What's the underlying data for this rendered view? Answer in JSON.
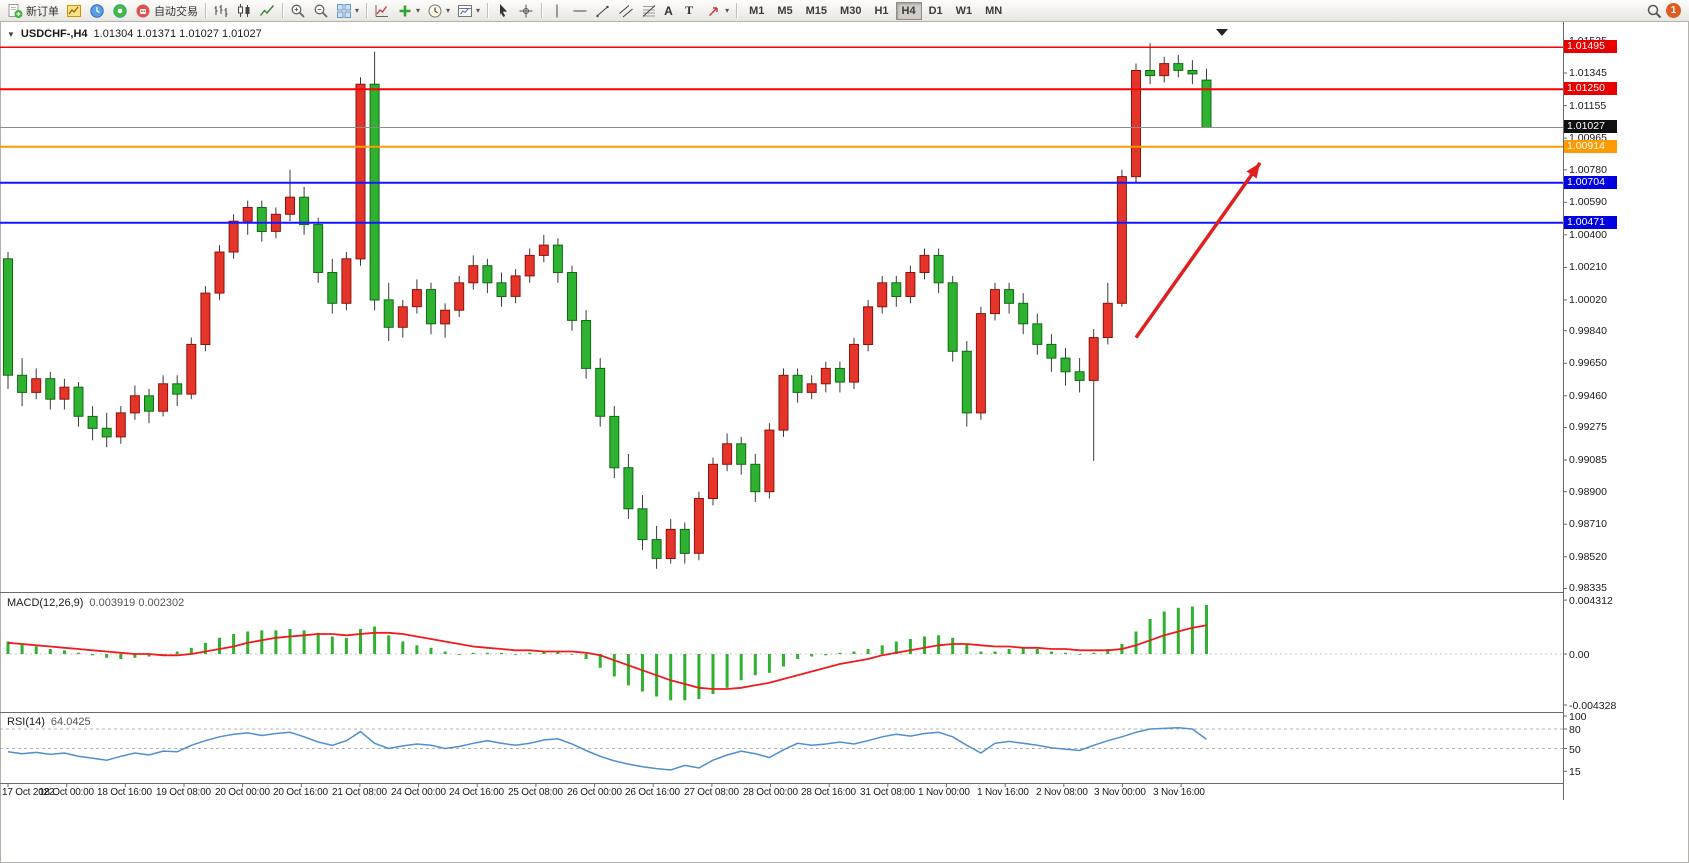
{
  "window": {
    "chart_title_marker": "▼",
    "symbol_period": "USDCHF-,H4",
    "ohlc_text": "1.01304 1.01371 1.01027 1.01027"
  },
  "toolbar": {
    "new_order_label": "新订单",
    "autotrading_label": "自动交易",
    "text_tool_label": "A",
    "label_tool_label": "T",
    "timeframes": [
      "M1",
      "M5",
      "M15",
      "M30",
      "H1",
      "H4",
      "D1",
      "W1",
      "MN"
    ],
    "active_timeframe": "H4",
    "notification_count": "1"
  },
  "chart_data": {
    "type": "candlestick",
    "symbol": "USDCHF-",
    "period": "H4",
    "ohlc": {
      "open": "1.01304",
      "high": "1.01371",
      "low": "1.01027",
      "close": "1.01027"
    },
    "colors": {
      "up": "#e5352b",
      "up_border": "#8f130b",
      "down": "#2fb132",
      "down_border": "#0d6e10",
      "wick": "#3a3a3a",
      "macd_hist": "#2fb132",
      "macd_signal": "#ee1c1c",
      "rsi": "#4f8fd0",
      "current_line": "#8c8c8c",
      "arrow": "#e02020"
    },
    "price_ticks": [
      "1.01535",
      "1.01345",
      "1.01155",
      "1.00965",
      "1.00780",
      "1.00590",
      "1.00400",
      "1.00210",
      "1.00020",
      "0.99840",
      "0.99650",
      "0.99460",
      "0.99275",
      "0.99085",
      "0.98900",
      "0.98710",
      "0.98520",
      "0.98335"
    ],
    "time_labels": [
      "17 Oct 2022",
      "18 Oct 00:00",
      "18 Oct 16:00",
      "19 Oct 08:00",
      "20 Oct 00:00",
      "20 Oct 16:00",
      "21 Oct 08:00",
      "24 Oct 00:00",
      "24 Oct 16:00",
      "25 Oct 08:00",
      "26 Oct 00:00",
      "26 Oct 16:00",
      "27 Oct 08:00",
      "28 Oct 00:00",
      "28 Oct 16:00",
      "31 Oct 08:00",
      "1 Nov 00:00",
      "1 Nov 16:00",
      "2 Nov 08:00",
      "3 Nov 00:00",
      "3 Nov 16:00"
    ],
    "hlines": [
      {
        "price": 1.01495,
        "color": "#ff0000",
        "width": 1.5,
        "label": "1.01495",
        "label_bg": "#e80000"
      },
      {
        "price": 1.0125,
        "color": "#ff0000",
        "width": 2,
        "label": "1.01250",
        "label_bg": "#e80000"
      },
      {
        "price": 1.00914,
        "color": "#ff9a00",
        "width": 2,
        "label": "1.00914",
        "label_bg": "#ff9a00"
      },
      {
        "price": 1.00704,
        "color": "#1414ff",
        "width": 2,
        "label": "1.00704",
        "label_bg": "#0000e0"
      },
      {
        "price": 1.00471,
        "color": "#1414ff",
        "width": 2,
        "label": "1.00471",
        "label_bg": "#0000e0"
      }
    ],
    "current_price": {
      "value": 1.01027,
      "label": "1.01027",
      "label_bg": "#101010"
    },
    "trend_arrow": {
      "from": {
        "bar": 80,
        "price": 0.998
      },
      "to": {
        "bar": 88.8,
        "price": 1.0082
      }
    },
    "candles": [
      [
        1.0026,
        1.003,
        0.995,
        0.9958
      ],
      [
        0.9958,
        0.9968,
        0.994,
        0.9948
      ],
      [
        0.9948,
        0.9962,
        0.9944,
        0.9956
      ],
      [
        0.9956,
        0.996,
        0.9938,
        0.9944
      ],
      [
        0.9944,
        0.9956,
        0.9938,
        0.9951
      ],
      [
        0.9951,
        0.9954,
        0.9928,
        0.9934
      ],
      [
        0.9934,
        0.994,
        0.992,
        0.9927
      ],
      [
        0.9927,
        0.9936,
        0.9916,
        0.9922
      ],
      [
        0.9922,
        0.994,
        0.9918,
        0.9936
      ],
      [
        0.9936,
        0.9952,
        0.9932,
        0.9946
      ],
      [
        0.9946,
        0.995,
        0.993,
        0.9937
      ],
      [
        0.9937,
        0.9958,
        0.9934,
        0.9953
      ],
      [
        0.9953,
        0.9958,
        0.994,
        0.9947
      ],
      [
        0.9947,
        0.998,
        0.9944,
        0.9976
      ],
      [
        0.9976,
        1.001,
        0.9972,
        1.0006
      ],
      [
        1.0006,
        1.0034,
        1.0002,
        1.003
      ],
      [
        1.003,
        1.0052,
        1.0026,
        1.0048
      ],
      [
        1.0048,
        1.006,
        1.004,
        1.0056
      ],
      [
        1.0056,
        1.006,
        1.0036,
        1.0042
      ],
      [
        1.0042,
        1.0056,
        1.0038,
        1.0052
      ],
      [
        1.0052,
        1.0078,
        1.0048,
        1.0062
      ],
      [
        1.0062,
        1.0068,
        1.004,
        1.0046
      ],
      [
        1.0046,
        1.005,
        1.0012,
        1.0018
      ],
      [
        1.0018,
        1.0026,
        0.9994,
        1.0
      ],
      [
        1.0,
        1.003,
        0.9996,
        1.0026
      ],
      [
        1.0026,
        1.0132,
        1.0022,
        1.0128
      ],
      [
        1.0128,
        1.0147,
        0.9996,
        1.0002
      ],
      [
        1.0002,
        1.0012,
        0.9978,
        0.9986
      ],
      [
        0.9986,
        1.0002,
        0.998,
        0.9998
      ],
      [
        0.9998,
        1.0014,
        0.9994,
        1.0008
      ],
      [
        1.0008,
        1.0012,
        0.9982,
        0.9988
      ],
      [
        0.9988,
        1.0,
        0.998,
        0.9996
      ],
      [
        0.9996,
        1.0016,
        0.9992,
        1.0012
      ],
      [
        1.0012,
        1.0028,
        1.0008,
        1.0022
      ],
      [
        1.0022,
        1.0026,
        1.0006,
        1.0012
      ],
      [
        1.0012,
        1.0018,
        0.9998,
        1.0004
      ],
      [
        1.0004,
        1.002,
        1.0,
        1.0016
      ],
      [
        1.0016,
        1.0032,
        1.0012,
        1.0028
      ],
      [
        1.0028,
        1.004,
        1.0024,
        1.0034
      ],
      [
        1.0034,
        1.0038,
        1.0012,
        1.0018
      ],
      [
        1.0018,
        1.0022,
        0.9984,
        0.999
      ],
      [
        0.999,
        0.9996,
        0.9956,
        0.9962
      ],
      [
        0.9962,
        0.9968,
        0.9928,
        0.9934
      ],
      [
        0.9934,
        0.994,
        0.9898,
        0.9904
      ],
      [
        0.9904,
        0.9912,
        0.9874,
        0.988
      ],
      [
        0.988,
        0.9888,
        0.9856,
        0.9862
      ],
      [
        0.9862,
        0.987,
        0.9845,
        0.9851
      ],
      [
        0.9851,
        0.9874,
        0.9848,
        0.9868
      ],
      [
        0.9868,
        0.9872,
        0.9848,
        0.9854
      ],
      [
        0.9854,
        0.989,
        0.985,
        0.9886
      ],
      [
        0.9886,
        0.991,
        0.9882,
        0.9906
      ],
      [
        0.9906,
        0.9924,
        0.9902,
        0.9918
      ],
      [
        0.9918,
        0.9922,
        0.99,
        0.9906
      ],
      [
        0.9906,
        0.9912,
        0.9884,
        0.989
      ],
      [
        0.989,
        0.993,
        0.9886,
        0.9926
      ],
      [
        0.9926,
        0.9962,
        0.9922,
        0.9958
      ],
      [
        0.9958,
        0.9962,
        0.9942,
        0.9948
      ],
      [
        0.9948,
        0.9958,
        0.9944,
        0.9953
      ],
      [
        0.9953,
        0.9966,
        0.9948,
        0.9962
      ],
      [
        0.9962,
        0.9966,
        0.9948,
        0.9954
      ],
      [
        0.9954,
        0.998,
        0.995,
        0.9976
      ],
      [
        0.9976,
        1.0002,
        0.9972,
        0.9998
      ],
      [
        0.9998,
        1.0016,
        0.9994,
        1.0012
      ],
      [
        1.0012,
        1.0016,
        0.9998,
        1.0004
      ],
      [
        1.0004,
        1.0022,
        1.0,
        1.0018
      ],
      [
        1.0018,
        1.0032,
        1.0014,
        1.0028
      ],
      [
        1.0028,
        1.0032,
        1.0006,
        1.0012
      ],
      [
        1.0012,
        1.0016,
        0.9966,
        0.9972
      ],
      [
        0.9972,
        0.9978,
        0.9928,
        0.9936
      ],
      [
        0.9936,
        0.9998,
        0.9932,
        0.9994
      ],
      [
        0.9994,
        1.0012,
        0.999,
        1.0008
      ],
      [
        1.0008,
        1.0012,
        0.9994,
        1.0
      ],
      [
        1.0,
        1.0006,
        0.9982,
        0.9988
      ],
      [
        0.9988,
        0.9994,
        0.997,
        0.9976
      ],
      [
        0.9976,
        0.9982,
        0.996,
        0.9968
      ],
      [
        0.9968,
        0.9974,
        0.9952,
        0.996
      ],
      [
        0.996,
        0.9968,
        0.9948,
        0.9955
      ],
      [
        0.9955,
        0.9985,
        0.9908,
        0.998
      ],
      [
        0.998,
        1.0012,
        0.9976,
        1.0
      ],
      [
        1.0,
        1.0078,
        0.9998,
        1.0074
      ],
      [
        1.0074,
        1.014,
        1.007,
        1.0136
      ],
      [
        1.0136,
        1.0152,
        1.0128,
        1.0133
      ],
      [
        1.0133,
        1.0144,
        1.0129,
        1.014
      ],
      [
        1.014,
        1.0145,
        1.0132,
        1.0136
      ],
      [
        1.0136,
        1.0142,
        1.0128,
        1.0134
      ],
      [
        1.01304,
        1.01371,
        1.01027,
        1.01027
      ]
    ],
    "macd": {
      "name": "MACD(12,26,9)",
      "values_text": "0.003919 0.002302",
      "ticks": [
        "0.004312",
        "0.00",
        "-0.004328"
      ],
      "tick_values": [
        0.004312,
        0,
        -0.004328
      ],
      "hist": [
        0.001,
        0.0008,
        0.0006,
        0.0004,
        0.0003,
        0.0001,
        -0.0001,
        -0.0003,
        -0.0004,
        -0.0003,
        -0.0002,
        0.0,
        0.0002,
        0.0005,
        0.0009,
        0.0013,
        0.0016,
        0.0018,
        0.0019,
        0.0019,
        0.002,
        0.0019,
        0.0017,
        0.0014,
        0.0013,
        0.002,
        0.0022,
        0.0015,
        0.001,
        0.0007,
        0.0005,
        0.0002,
        0.0,
        0.0001,
        0.0001,
        0.0001,
        0.0,
        0.0001,
        0.0002,
        0.0002,
        0.0,
        -0.0004,
        -0.0011,
        -0.0018,
        -0.0025,
        -0.003,
        -0.0034,
        -0.0037,
        -0.0037,
        -0.0036,
        -0.0032,
        -0.0027,
        -0.0021,
        -0.0017,
        -0.0015,
        -0.001,
        -0.0004,
        -0.0002,
        -0.0001,
        0.0001,
        0.0002,
        0.0004,
        0.0007,
        0.001,
        0.0012,
        0.0014,
        0.0015,
        0.0013,
        0.0008,
        0.0002,
        0.0002,
        0.0004,
        0.0005,
        0.0004,
        0.0002,
        0.0001,
        0.0,
        0.0001,
        0.0004,
        0.0008,
        0.0018,
        0.0028,
        0.0034,
        0.0037,
        0.0038,
        0.003919
      ],
      "signal": [
        0.0009,
        0.0008,
        0.0007,
        0.0006,
        0.0005,
        0.0004,
        0.0003,
        0.0002,
        0.0001,
        0.0,
        0.0,
        -0.0001,
        -0.0001,
        0.0,
        0.0002,
        0.0004,
        0.0006,
        0.0009,
        0.0011,
        0.0013,
        0.0014,
        0.0015,
        0.0016,
        0.0016,
        0.0015,
        0.0016,
        0.0017,
        0.0017,
        0.0016,
        0.0014,
        0.0012,
        0.001,
        0.0008,
        0.0006,
        0.0005,
        0.0004,
        0.0003,
        0.0003,
        0.0002,
        0.0002,
        0.0002,
        0.0001,
        -0.0001,
        -0.0005,
        -0.0009,
        -0.0013,
        -0.0017,
        -0.0021,
        -0.0024,
        -0.0027,
        -0.0028,
        -0.0028,
        -0.0027,
        -0.0025,
        -0.0023,
        -0.002,
        -0.0017,
        -0.0014,
        -0.0011,
        -0.0008,
        -0.0006,
        -0.0004,
        -0.0001,
        0.0001,
        0.0003,
        0.0005,
        0.0007,
        0.0008,
        0.0008,
        0.0007,
        0.0006,
        0.0006,
        0.0005,
        0.0005,
        0.0004,
        0.0004,
        0.0003,
        0.0003,
        0.0003,
        0.0004,
        0.0007,
        0.0011,
        0.0015,
        0.0018,
        0.0021,
        0.002302
      ]
    },
    "rsi": {
      "name": "RSI(14)",
      "value_text": "64.0425",
      "ticks": [
        "100",
        "80",
        "50",
        "15"
      ],
      "tick_values": [
        100,
        80,
        50,
        15
      ],
      "levels": [
        80,
        50
      ],
      "values": [
        45,
        42,
        44,
        41,
        43,
        38,
        35,
        32,
        38,
        43,
        40,
        46,
        45,
        55,
        62,
        68,
        72,
        74,
        70,
        73,
        75,
        68,
        60,
        55,
        62,
        76,
        58,
        50,
        54,
        57,
        55,
        50,
        53,
        58,
        62,
        58,
        55,
        58,
        63,
        65,
        57,
        47,
        38,
        31,
        26,
        22,
        19,
        17,
        24,
        20,
        32,
        40,
        46,
        42,
        36,
        48,
        58,
        55,
        57,
        60,
        57,
        62,
        68,
        72,
        69,
        73,
        75,
        68,
        55,
        43,
        58,
        61,
        58,
        55,
        51,
        49,
        47,
        55,
        62,
        68,
        75,
        80,
        81,
        82,
        80,
        64.0425
      ]
    }
  }
}
